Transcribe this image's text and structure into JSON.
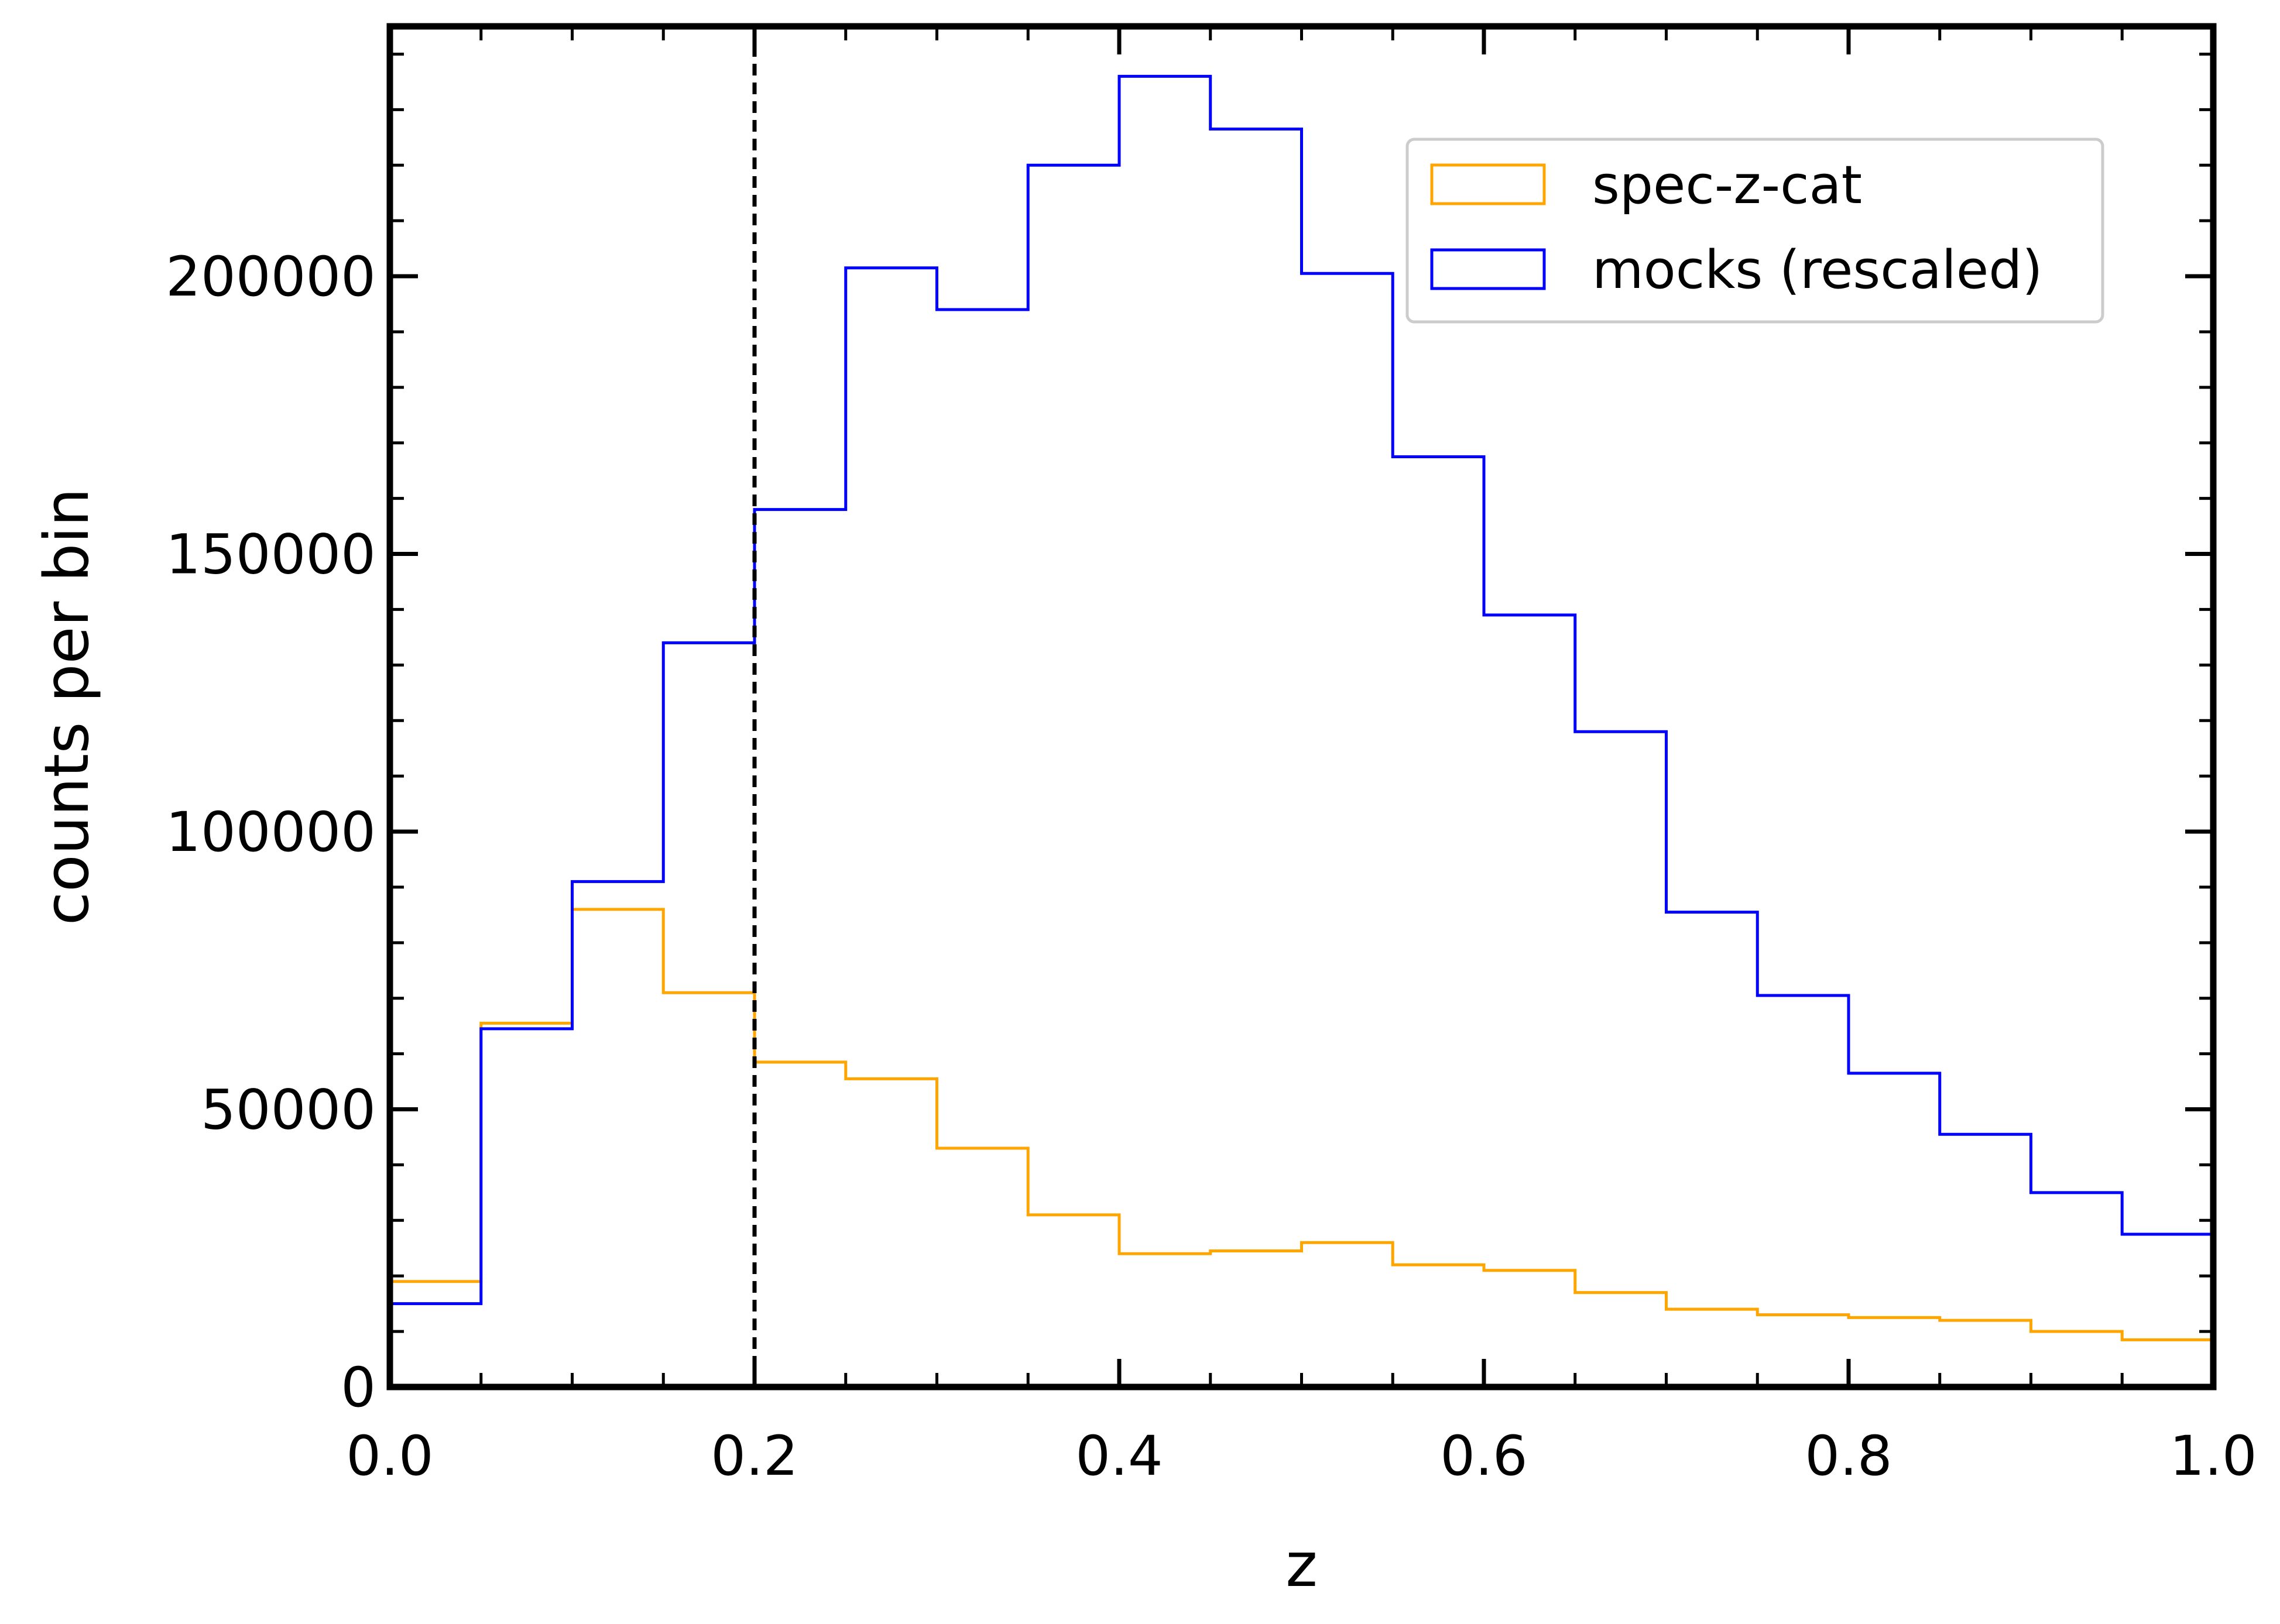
{
  "chart_data": {
    "type": "histogram",
    "title": "",
    "xlabel": "z",
    "ylabel": "counts per bin",
    "xlim": [
      0.0,
      1.0
    ],
    "ylim": [
      0,
      245000
    ],
    "x_ticks": [
      {
        "value": 0.0,
        "label": "0.0"
      },
      {
        "value": 0.2,
        "label": "0.2"
      },
      {
        "value": 0.4,
        "label": "0.4"
      },
      {
        "value": 0.6,
        "label": "0.6"
      },
      {
        "value": 0.8,
        "label": "0.8"
      },
      {
        "value": 1.0,
        "label": "1.0"
      }
    ],
    "y_ticks": [
      {
        "value": 0,
        "label": "0"
      },
      {
        "value": 50000,
        "label": "50000"
      },
      {
        "value": 100000,
        "label": "100000"
      },
      {
        "value": 150000,
        "label": "150000"
      },
      {
        "value": 200000,
        "label": "200000"
      }
    ],
    "x_minor_step": 0.05,
    "y_minor_step": 10000,
    "bin_edges": [
      0.0,
      0.05,
      0.1,
      0.15,
      0.2,
      0.25,
      0.3,
      0.35,
      0.4,
      0.45,
      0.5,
      0.55,
      0.6,
      0.65,
      0.7,
      0.75,
      0.8,
      0.85,
      0.9,
      0.95,
      1.0
    ],
    "series": [
      {
        "name": "spec-z-cat",
        "color": "#FFA500",
        "values": [
          19000,
          65500,
          86000,
          71000,
          58500,
          55500,
          43000,
          31000,
          24000,
          24500,
          26000,
          22000,
          21000,
          17000,
          14000,
          13000,
          12500,
          12000,
          10000,
          8500
        ]
      },
      {
        "name": "mocks (rescaled)",
        "color": "#0000FF",
        "values": [
          15000,
          64500,
          91000,
          134000,
          158000,
          201500,
          194000,
          220000,
          236000,
          226500,
          200500,
          167500,
          139000,
          118000,
          85500,
          70500,
          56500,
          45500,
          35000,
          27500
        ]
      }
    ],
    "annotations": [
      {
        "type": "vline",
        "x": 0.2,
        "style": "dashed",
        "color": "#000000"
      }
    ],
    "legend": {
      "position": "top-right"
    }
  }
}
